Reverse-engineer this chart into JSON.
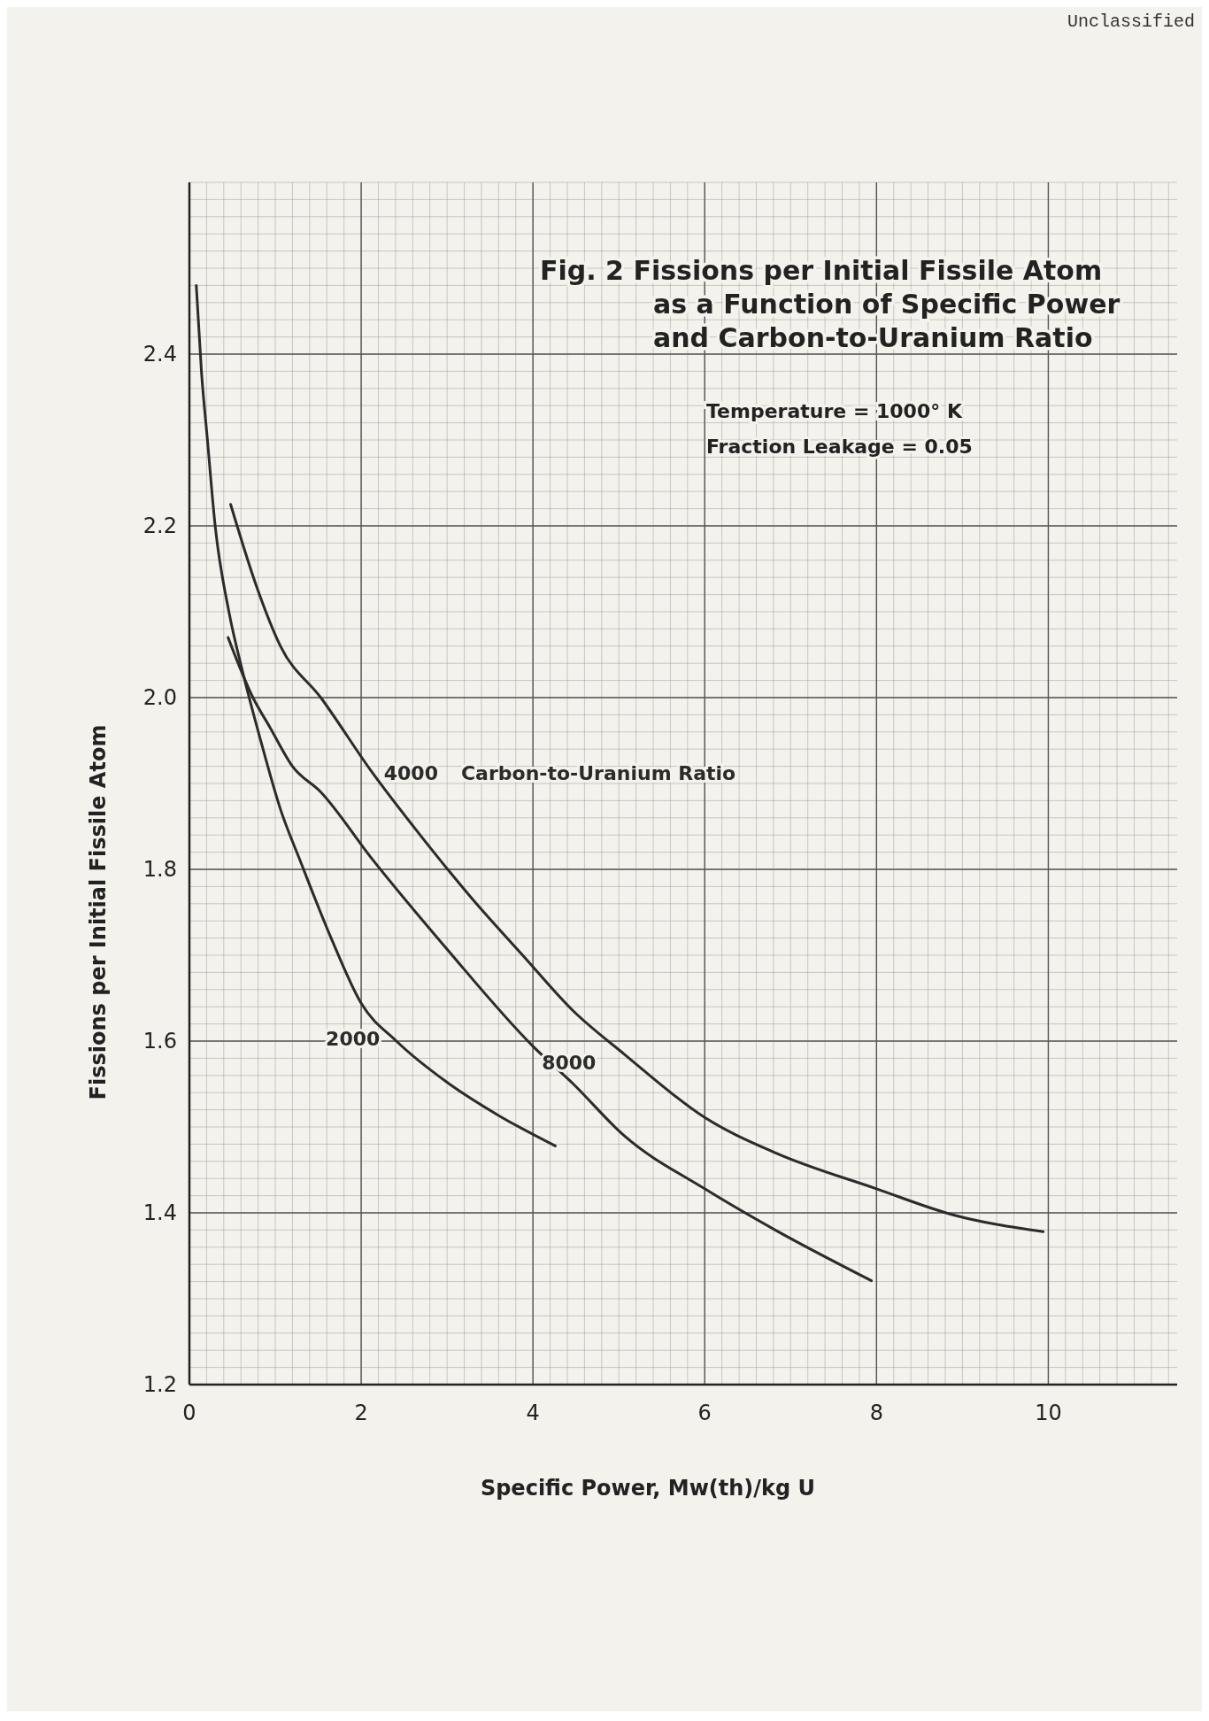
{
  "chart_data": {
    "type": "line",
    "title": "Fig. 2  Fissions per Initial Fissile Atom\nas a Function of Specific Power\nand Carbon-to-Uranium Ratio",
    "subtitle": "Temperature = 1000° K\nFraction Leakage = 0.05",
    "xlabel": "Specific Power, Mw(th)/kg U",
    "ylabel": "Fissions per Initial Fissile Atom",
    "legend_title": "Carbon-to-Uranium Ratio",
    "annotations": [
      "Unclassified"
    ],
    "xlim": [
      0,
      11.5
    ],
    "ylim": [
      1.2,
      2.6
    ],
    "xticks": [
      0,
      2,
      4,
      6,
      8,
      10
    ],
    "yticks": [
      1.2,
      1.4,
      1.6,
      1.8,
      {
        "value": 2,
        "label": "2.0"
      },
      2.2,
      2.4
    ],
    "grid": true,
    "line_style": "solid",
    "series": [
      {
        "name": "2000",
        "color": "#2b2b2b",
        "x": [
          0.08,
          0.14,
          0.21,
          0.3,
          0.46,
          0.62,
          0.83,
          1.06,
          1.29,
          1.65,
          2.0,
          2.41,
          3.0,
          3.59,
          4.26
        ],
        "values": [
          2.48,
          2.38,
          2.3,
          2.2,
          2.1,
          2.03,
          1.95,
          1.87,
          1.81,
          1.72,
          1.644,
          1.6,
          1.552,
          1.514,
          1.478
        ]
      },
      {
        "name": "4000",
        "color": "#2b2b2b",
        "x": [
          0.48,
          0.78,
          1.06,
          1.53,
          2.12,
          2.71,
          3.29,
          3.88,
          4.47,
          5.06,
          6.0,
          6.82,
          8.0,
          8.88,
          9.94
        ],
        "values": [
          2.225,
          2.13,
          2.06,
          2.0,
          1.914,
          1.837,
          1.766,
          1.7,
          1.635,
          1.585,
          1.511,
          1.47,
          1.428,
          1.398,
          1.378
        ]
      },
      {
        "name": "8000",
        "color": "#2b2b2b",
        "x": [
          0.45,
          0.74,
          0.94,
          1.2,
          1.53,
          2.12,
          3.0,
          4.0,
          4.47,
          5.06,
          6.0,
          6.82,
          7.94
        ],
        "values": [
          2.07,
          2.0,
          1.965,
          1.92,
          1.89,
          1.813,
          1.707,
          1.594,
          1.55,
          1.49,
          1.428,
          1.38,
          1.321
        ]
      }
    ]
  }
}
